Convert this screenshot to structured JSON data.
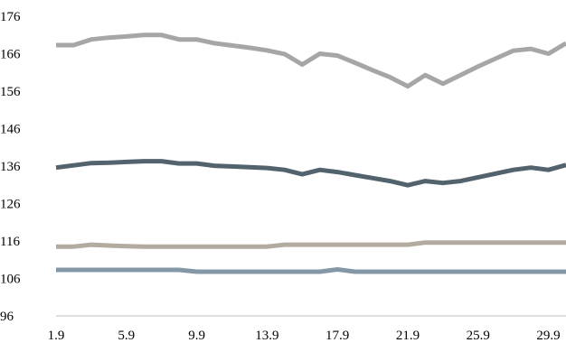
{
  "chart_data": {
    "type": "line",
    "title": "",
    "xlabel": "",
    "ylabel": "",
    "grid": false,
    "legend": "none",
    "ylim": [
      96,
      176
    ],
    "y_ticks": [
      "96",
      "106",
      "116",
      "126",
      "136",
      "146",
      "156",
      "166",
      "176"
    ],
    "x_ticks": [
      "1.9",
      "5.9",
      "9.9",
      "13.9",
      "17.9",
      "21.9",
      "25.9",
      "29.9"
    ],
    "x": [
      "1.9",
      "2.9",
      "3.9",
      "4.9",
      "5.9",
      "6.9",
      "7.9",
      "8.9",
      "9.9",
      "10.9",
      "11.9",
      "12.9",
      "13.9",
      "14.9",
      "15.9",
      "16.9",
      "17.9",
      "18.9",
      "19.9",
      "20.9",
      "21.9",
      "22.9",
      "23.9",
      "24.9",
      "25.9",
      "26.9",
      "27.9",
      "28.9",
      "29.9",
      "30.9"
    ],
    "series": [
      {
        "color": "#a6a6a6",
        "values": [
          168.3,
          168.3,
          169.8,
          170.3,
          170.6,
          171.0,
          171.0,
          169.8,
          169.8,
          168.8,
          168.2,
          167.6,
          166.9,
          165.9,
          163.1,
          166.0,
          165.5,
          163.6,
          161.6,
          159.7,
          157.3,
          160.3,
          158.0,
          160.3,
          162.6,
          164.7,
          166.8,
          167.3,
          166.0,
          168.8
        ]
      },
      {
        "color": "#52636e",
        "values": [
          135.6,
          136.2,
          136.8,
          136.9,
          137.1,
          137.3,
          137.3,
          136.7,
          136.7,
          136.1,
          135.9,
          135.7,
          135.5,
          135.0,
          133.8,
          135.0,
          134.4,
          133.6,
          132.8,
          132.0,
          130.9,
          132.0,
          131.5,
          132.0,
          133.0,
          134.0,
          135.0,
          135.6,
          135.0,
          136.3
        ]
      },
      {
        "color": "#b3aaa0",
        "values": [
          114.5,
          114.5,
          115.0,
          114.8,
          114.6,
          114.5,
          114.5,
          114.5,
          114.5,
          114.5,
          114.5,
          114.5,
          114.5,
          115.0,
          115.0,
          115.0,
          115.0,
          115.0,
          115.0,
          115.0,
          115.0,
          115.6,
          115.6,
          115.6,
          115.6,
          115.6,
          115.6,
          115.6,
          115.6,
          115.6
        ]
      },
      {
        "color": "#8497a6",
        "values": [
          108.3,
          108.3,
          108.3,
          108.3,
          108.3,
          108.3,
          108.3,
          108.3,
          107.8,
          107.8,
          107.8,
          107.8,
          107.8,
          107.8,
          107.8,
          107.8,
          108.4,
          107.8,
          107.8,
          107.8,
          107.8,
          107.8,
          107.8,
          107.8,
          107.8,
          107.8,
          107.8,
          107.8,
          107.8,
          107.8
        ]
      }
    ]
  }
}
